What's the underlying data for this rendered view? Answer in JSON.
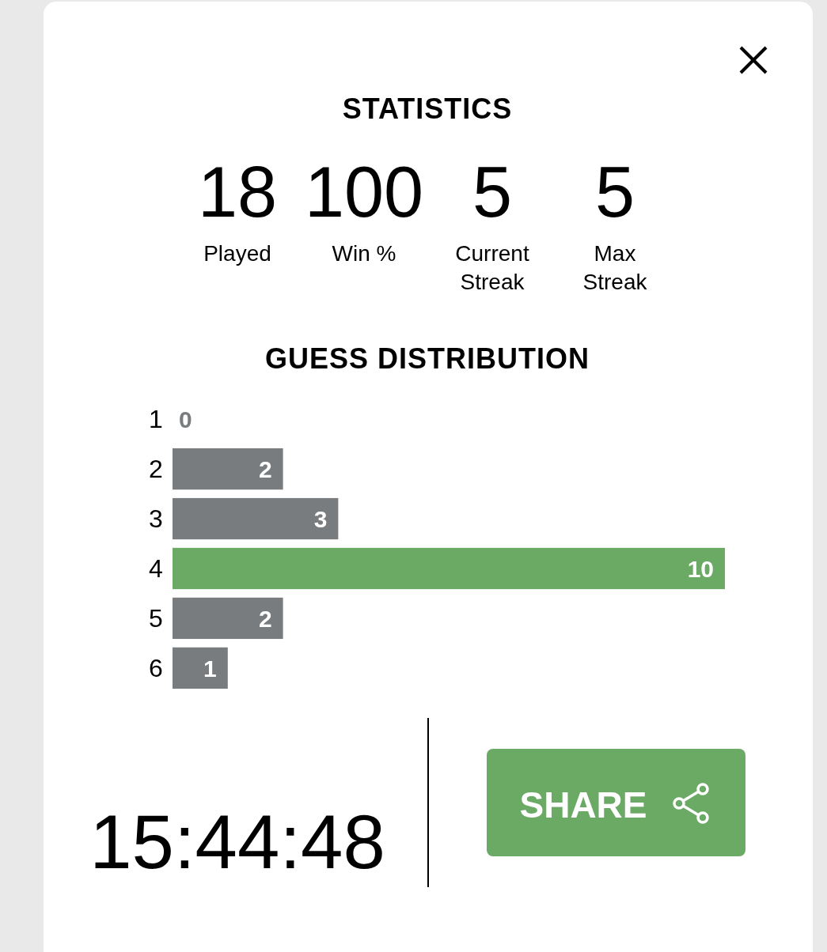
{
  "chart_data": [
    {
      "type": "other",
      "title": "STATISTICS",
      "annotations": [
        "18",
        "Played",
        "100",
        "Win %",
        "5",
        "Current Streak",
        "5",
        "Max Streak"
      ]
    },
    {
      "type": "bar",
      "orientation": "horizontal",
      "title": "GUESS DISTRIBUTION",
      "categories": [
        "1",
        "2",
        "3",
        "4",
        "5",
        "6"
      ],
      "values": [
        0,
        2,
        3,
        10,
        2,
        1
      ],
      "colors": [
        "#787c7e",
        "#787c7e",
        "#787c7e",
        "#6aaa64",
        "#787c7e",
        "#787c7e"
      ],
      "data_labels": true,
      "annotations": [
        "15:44:48",
        "SHARE"
      ]
    }
  ]
}
